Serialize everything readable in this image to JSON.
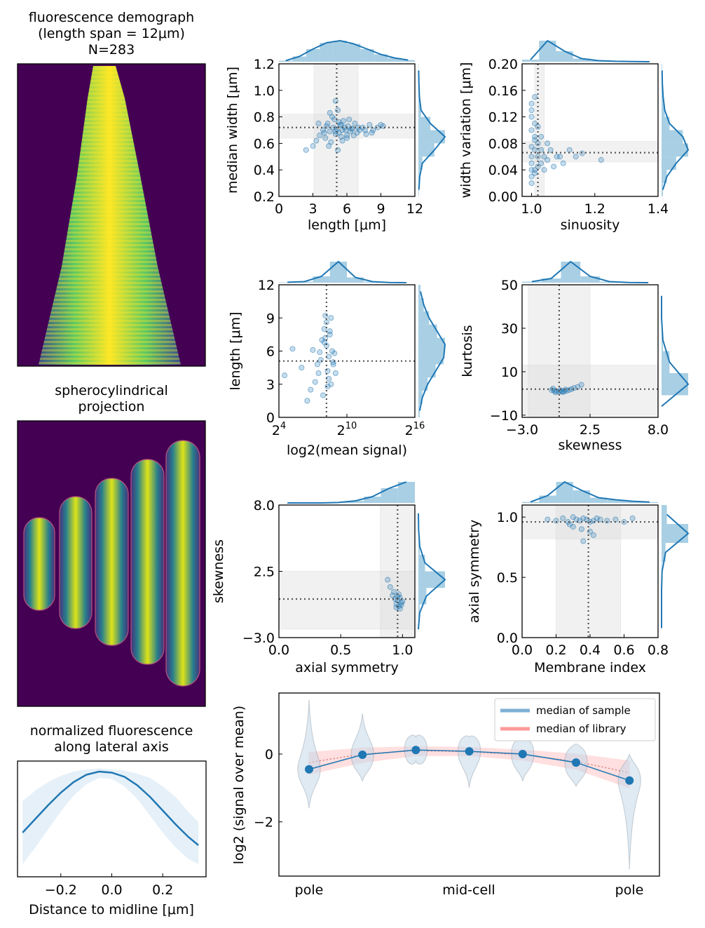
{
  "colors": {
    "scatter": "#1f77b4",
    "hist": "#9ecae1",
    "band": "#d9d9d9",
    "refline": "#555555",
    "library": "#ff9999",
    "violin": "#c6d9ea"
  },
  "demograph": {
    "title_lines": [
      "fluorescence demograph",
      "(length span = 12μm)",
      "N=283"
    ]
  },
  "projection": {
    "title_lines": [
      "spherocylindrical",
      "projection"
    ]
  },
  "lateral": {
    "title_lines": [
      "normalized fluorescence",
      "along lateral axis"
    ]
  },
  "chart_data": [
    {
      "id": "lateral",
      "type": "line",
      "x": [
        -0.35,
        -0.3,
        -0.25,
        -0.2,
        -0.15,
        -0.1,
        -0.05,
        0,
        0.05,
        0.1,
        0.15,
        0.2,
        0.25,
        0.3,
        0.34
      ],
      "y": [
        0.42,
        0.55,
        0.68,
        0.8,
        0.9,
        0.97,
        1.0,
        0.99,
        0.95,
        0.87,
        0.76,
        0.63,
        0.5,
        0.38,
        0.3
      ],
      "band_low": [
        0.12,
        0.28,
        0.45,
        0.62,
        0.77,
        0.88,
        0.94,
        0.93,
        0.86,
        0.74,
        0.58,
        0.42,
        0.28,
        0.17,
        0.12
      ],
      "band_high": [
        0.72,
        0.82,
        0.9,
        0.96,
        1.0,
        1.02,
        1.03,
        1.02,
        1.01,
        0.98,
        0.94,
        0.86,
        0.76,
        0.62,
        0.52
      ],
      "xlim": [
        -0.37,
        0.37
      ],
      "ylim": [
        0,
        1.1
      ],
      "xticks": [
        -0.2,
        0.0,
        0.2
      ],
      "xticklabels": [
        "−0.2",
        "0.0",
        "0.2"
      ],
      "xlabel": "Distance to midline [μm]"
    },
    {
      "id": "len_width",
      "type": "scatter",
      "xlabel": "length [μm]",
      "ylabel": "median width [μm]",
      "xlim": [
        0,
        12
      ],
      "ylim": [
        0.2,
        1.2
      ],
      "xticks": [
        0,
        3,
        6,
        9,
        12
      ],
      "xticklabels": [
        "0",
        "3",
        "6",
        "9",
        "12"
      ],
      "yticks": [
        0.2,
        0.4,
        0.6,
        0.8,
        1.0,
        1.2
      ],
      "yticklabels": [
        "0.2",
        "0.4",
        "0.6",
        "0.8",
        "1.0",
        "1.2"
      ],
      "median_x": 5.1,
      "median_y": 0.72,
      "band_x": [
        3.1,
        7.0
      ],
      "band_y": [
        0.64,
        0.82
      ],
      "x": [
        2.4,
        3.0,
        3.3,
        3.6,
        3.9,
        4.1,
        4.3,
        4.5,
        4.6,
        4.8,
        4.9,
        5.0,
        5.1,
        5.2,
        5.3,
        5.4,
        5.5,
        5.6,
        5.7,
        5.8,
        6.0,
        6.1,
        6.3,
        6.5,
        6.7,
        6.9,
        7.1,
        7.4,
        7.7,
        8.0,
        8.3,
        8.7,
        9.2,
        3.5,
        4.0,
        4.4,
        4.7,
        5.0,
        5.3,
        5.6,
        5.9,
        6.2,
        6.6,
        7.0,
        7.6,
        8.2,
        9.0,
        4.2,
        5.2,
        6.4,
        5.0,
        5.5,
        4.5,
        6.0
      ],
      "y": [
        0.55,
        0.58,
        0.62,
        0.66,
        0.7,
        0.64,
        0.75,
        0.69,
        0.61,
        0.72,
        0.78,
        0.67,
        0.71,
        0.85,
        0.68,
        0.74,
        0.65,
        0.7,
        0.77,
        0.72,
        0.66,
        0.73,
        0.69,
        0.71,
        0.75,
        0.68,
        0.7,
        0.72,
        0.67,
        0.74,
        0.7,
        0.72,
        0.73,
        0.75,
        0.68,
        0.58,
        0.8,
        0.92,
        0.76,
        0.62,
        0.7,
        0.78,
        0.66,
        0.72,
        0.7,
        0.68,
        0.74,
        0.73,
        0.55,
        0.71,
        0.69,
        0.74,
        0.83,
        0.64
      ],
      "hist_x": [
        0.05,
        0.25,
        0.6,
        0.9,
        1.0,
        0.85,
        0.6,
        0.35,
        0.18,
        0.08
      ],
      "hist_y": [
        0.02,
        0.05,
        0.15,
        0.6,
        1.0,
        0.45,
        0.1,
        0.04,
        0.02,
        0.01
      ]
    },
    {
      "id": "sin_wvar",
      "type": "scatter",
      "xlabel": "sinuosity",
      "ylabel": "width variation [μm]",
      "xlim": [
        0.97,
        1.4
      ],
      "ylim": [
        0,
        0.2
      ],
      "xticks": [
        1.0,
        1.2,
        1.4
      ],
      "xticklabels": [
        "1.0",
        "1.2",
        "1.4"
      ],
      "yticks": [
        0,
        0.04,
        0.08,
        0.12,
        0.16,
        0.2
      ],
      "yticklabels": [
        "0.00",
        "0.04",
        "0.08",
        "0.12",
        "0.16",
        "0.20"
      ],
      "median_x": 1.02,
      "median_y": 0.066,
      "band_x": [
        1.01,
        1.04
      ],
      "band_y": [
        0.052,
        0.083
      ],
      "x": [
        1.0,
        1.0,
        1.0,
        1.01,
        1.01,
        1.01,
        1.0,
        1.02,
        1.02,
        1.0,
        1.01,
        1.03,
        1.03,
        1.04,
        1.05,
        1.06,
        1.08,
        1.1,
        1.12,
        1.14,
        1.16,
        1.22,
        1.0,
        1.01,
        1.0,
        1.02,
        1.01,
        1.03,
        1.0,
        1.04,
        1.05,
        1.0,
        1.01,
        1.02,
        1.0,
        1.07,
        1.09
      ],
      "y": [
        0.04,
        0.05,
        0.06,
        0.07,
        0.09,
        0.11,
        0.14,
        0.06,
        0.08,
        0.12,
        0.04,
        0.05,
        0.07,
        0.06,
        0.08,
        0.07,
        0.06,
        0.05,
        0.07,
        0.06,
        0.065,
        0.055,
        0.03,
        0.15,
        0.1,
        0.045,
        0.085,
        0.09,
        0.075,
        0.04,
        0.055,
        0.13,
        0.035,
        0.105,
        0.02,
        0.045,
        0.06
      ],
      "hist_x": [
        0.1,
        1.0,
        0.5,
        0.15,
        0.05,
        0.02,
        0.01,
        0.0
      ],
      "hist_y": [
        0.05,
        0.2,
        0.55,
        1.0,
        0.8,
        0.3,
        0.12,
        0.06,
        0.03,
        0.02
      ]
    },
    {
      "id": "sig_len",
      "type": "scatter",
      "xlabel": "log2(mean signal)",
      "ylabel": "length [μm]",
      "xlim": [
        4,
        16
      ],
      "ylim": [
        0,
        12
      ],
      "xticks": [
        4,
        10,
        16
      ],
      "xticklabels": [
        "4",
        "10",
        "16"
      ],
      "yticks": [
        0,
        3,
        6,
        9,
        12
      ],
      "yticklabels": [
        "0",
        "3",
        "6",
        "9",
        "12"
      ],
      "median_x": 8.2,
      "median_y": 5.1,
      "x": [
        4.5,
        5.2,
        6.0,
        6.8,
        7.2,
        7.4,
        7.6,
        7.8,
        8.0,
        8.1,
        8.2,
        8.3,
        8.4,
        8.5,
        8.6,
        8.7,
        8.8,
        9.0,
        7.9,
        8.2,
        8.4,
        8.6,
        7.7,
        8.0,
        8.3,
        8.5,
        8.8,
        7.5,
        8.1,
        8.9,
        6.5,
        7.0
      ],
      "y": [
        3.8,
        6.2,
        4.5,
        2.5,
        3.2,
        4.8,
        5.9,
        7.0,
        8.0,
        9.2,
        6.5,
        4.2,
        5.5,
        7.5,
        3.0,
        6.0,
        5.0,
        4.0,
        2.0,
        8.6,
        3.5,
        9.0,
        5.2,
        6.8,
        2.8,
        7.8,
        4.8,
        4.0,
        7.2,
        5.8,
        1.5,
        6.1
      ],
      "hist_x": [
        0.02,
        0.05,
        0.3,
        1.0,
        0.25,
        0.05,
        0.01,
        0.0
      ],
      "hist_y": [
        0.05,
        0.15,
        0.35,
        0.65,
        0.95,
        1.0,
        0.7,
        0.4,
        0.2,
        0.08
      ]
    },
    {
      "id": "skew_kurt",
      "type": "scatter",
      "xlabel": "skewness",
      "ylabel": "kurtosis",
      "xlim": [
        -3,
        8
      ],
      "ylim": [
        -11,
        50
      ],
      "xticks": [
        -3,
        2.5,
        8
      ],
      "xticklabels": [
        "−3.0",
        "2.5",
        "8.0"
      ],
      "yticks": [
        -10,
        10,
        30,
        50
      ],
      "yticklabels": [
        "−10",
        "10",
        "30",
        "50"
      ],
      "median_x": 0.0,
      "median_y": 2.0,
      "band_x": [
        -2.5,
        2.5
      ],
      "band_y": [
        -10,
        13
      ],
      "x": [
        -0.6,
        -0.4,
        -0.2,
        0.0,
        0.2,
        0.4,
        0.6,
        0.8,
        1.0,
        1.2,
        1.5,
        1.8,
        -0.3,
        0.1,
        0.5,
        -0.5,
        0.3
      ],
      "y": [
        1.5,
        1.2,
        1.0,
        0.8,
        0.9,
        1.0,
        1.2,
        1.6,
        2.0,
        2.5,
        3.0,
        4.0,
        0.5,
        1.5,
        1.8,
        2.2,
        0.6
      ],
      "hist_x": [
        0.05,
        0.2,
        1.0,
        0.3,
        0.05,
        0.01,
        0.0
      ],
      "hist_y": [
        0.0,
        1.0,
        0.3,
        0.05,
        0.0,
        0.0
      ]
    },
    {
      "id": "axsym_skew",
      "type": "scatter",
      "xlabel": "axial symmetry",
      "ylabel": "skewness",
      "xlim": [
        0,
        1.1
      ],
      "ylim": [
        -3,
        8
      ],
      "xticks": [
        0,
        0.5,
        1.0
      ],
      "xticklabels": [
        "0.0",
        "0.5",
        "1.0"
      ],
      "yticks": [
        -3,
        2.5,
        8
      ],
      "yticklabels": [
        "−3.0",
        "2.5",
        "8.0"
      ],
      "median_x": 0.96,
      "median_y": 0.2,
      "band_x": [
        0.82,
        1.1
      ],
      "band_y": [
        -2.3,
        2.5
      ],
      "x": [
        0.92,
        0.94,
        0.95,
        0.96,
        0.97,
        0.98,
        0.99,
        1.0,
        0.93,
        0.95,
        0.97,
        0.99,
        0.88,
        0.9,
        0.96,
        0.98
      ],
      "y": [
        0.5,
        0.2,
        -0.2,
        0.1,
        -0.4,
        0.3,
        -0.1,
        0.0,
        0.8,
        -0.5,
        0.6,
        -0.3,
        1.8,
        1.2,
        0.4,
        -0.6
      ],
      "hist_x": [
        0.0,
        0.0,
        0.0,
        0.02,
        0.1,
        0.3,
        0.7,
        1.0
      ],
      "hist_y": [
        0.0,
        0.05,
        0.3,
        1.0,
        0.25,
        0.05,
        0.01,
        0.0
      ]
    },
    {
      "id": "mem_axsym",
      "type": "scatter",
      "xlabel": "Membrane index",
      "ylabel": "axial symmetry",
      "xlim": [
        0,
        0.8
      ],
      "ylim": [
        0,
        1.1
      ],
      "xticks": [
        0,
        0.2,
        0.4,
        0.6,
        0.8
      ],
      "xticklabels": [
        "0.0",
        "0.2",
        "0.4",
        "0.6",
        "0.8"
      ],
      "yticks": [
        0,
        0.5,
        1.0
      ],
      "yticklabels": [
        "0.0",
        "0.5",
        "1.0"
      ],
      "median_x": 0.39,
      "median_y": 0.96,
      "band_x": [
        0.2,
        0.58
      ],
      "band_y": [
        0.82,
        1.1
      ],
      "x": [
        0.15,
        0.2,
        0.24,
        0.27,
        0.3,
        0.32,
        0.34,
        0.36,
        0.38,
        0.4,
        0.42,
        0.44,
        0.46,
        0.5,
        0.55,
        0.6,
        0.65,
        0.3,
        0.35,
        0.4,
        0.36,
        0.42,
        0.28
      ],
      "y": [
        0.98,
        0.97,
        0.99,
        0.96,
        1.0,
        0.98,
        0.97,
        0.99,
        0.98,
        0.96,
        0.97,
        0.99,
        0.98,
        0.97,
        0.98,
        0.96,
        0.99,
        0.92,
        0.9,
        0.88,
        0.8,
        0.85,
        0.94
      ],
      "hist_x": [
        0.05,
        0.35,
        1.0,
        0.6,
        0.25,
        0.15,
        0.08,
        0.04
      ],
      "hist_y": [
        0.0,
        0.0,
        0.0,
        0.02,
        0.15,
        1.0,
        0.2
      ]
    },
    {
      "id": "axial_profile",
      "type": "line",
      "ylabel": "log2 (signal over mean)",
      "categories": [
        "pole",
        "mid-cell",
        "pole"
      ],
      "ylim": [
        -3.6,
        1.8
      ],
      "yticks": [
        -2,
        0
      ],
      "yticklabels": [
        "−2",
        "0"
      ],
      "x_positions": [
        0,
        1,
        2,
        3,
        4,
        5,
        6
      ],
      "sample_median": [
        -0.45,
        -0.02,
        0.12,
        0.08,
        0.0,
        -0.25,
        -0.78
      ],
      "library_median": [
        -0.25,
        0.0,
        0.1,
        0.07,
        -0.02,
        -0.22,
        -0.55
      ],
      "library_low": [
        -0.6,
        -0.25,
        -0.05,
        -0.05,
        -0.18,
        -0.45,
        -1.0
      ],
      "library_high": [
        0.05,
        0.18,
        0.22,
        0.2,
        0.12,
        0.0,
        -0.2
      ],
      "violin_range": [
        [
          -1.6,
          1.6
        ],
        [
          -0.8,
          1.2
        ],
        [
          -0.2,
          0.5
        ],
        [
          -1.0,
          0.5
        ],
        [
          -0.8,
          0.45
        ],
        [
          -0.95,
          0.3
        ],
        [
          -3.4,
          0.0
        ]
      ],
      "legend": [
        "median of sample",
        "median of library"
      ]
    }
  ]
}
